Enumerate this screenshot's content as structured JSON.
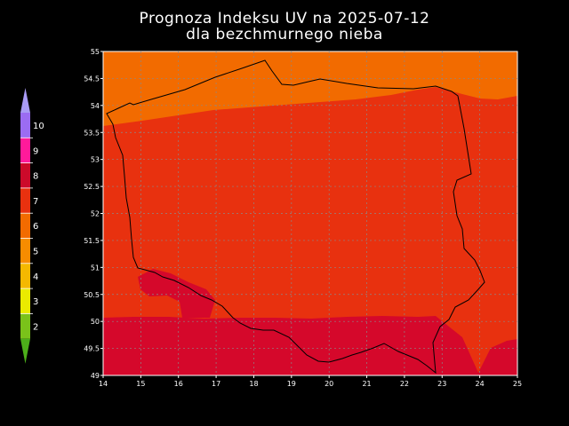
{
  "title": {
    "line1": "Prognoza Indeksu UV na 2025-07-12",
    "line2": "dla bezchmurnego nieba"
  },
  "map": {
    "x_ticks": [
      "14",
      "15",
      "16",
      "17",
      "18",
      "19",
      "20",
      "21",
      "22",
      "23",
      "24",
      "25"
    ],
    "y_ticks": [
      "55",
      "54.5",
      "54",
      "53.5",
      "53",
      "52.5",
      "52",
      "51.5",
      "51",
      "50.5",
      "50",
      "49.5",
      "49"
    ],
    "x_range": [
      14,
      25
    ],
    "y_range": [
      49,
      55
    ],
    "grid": true,
    "zones": [
      {
        "uv_index": 6,
        "color": "#f26b00",
        "region": "north coast band (~54–55°N)"
      },
      {
        "uv_index": 7,
        "color": "#e8310f",
        "region": "central Poland (~50–54°N)"
      },
      {
        "uv_index": 8,
        "color": "#d5082b",
        "region": "southern band (~49–50°N) and Lower Silesia"
      }
    ]
  },
  "legend": {
    "items": [
      {
        "label": "10",
        "color": "#9b6cf2"
      },
      {
        "label": "9",
        "color": "#ff1a9a"
      },
      {
        "label": "8",
        "color": "#cc0a2a"
      },
      {
        "label": "7",
        "color": "#e8310f"
      },
      {
        "label": "6",
        "color": "#f26b00"
      },
      {
        "label": "5",
        "color": "#f78c00"
      },
      {
        "label": "4",
        "color": "#f5b800"
      },
      {
        "label": "3",
        "color": "#eaea00"
      },
      {
        "label": "2",
        "color": "#7ac21a"
      }
    ],
    "top_arrow_color": "#a99bf5",
    "bottom_arrow_color": "#4caf1a"
  }
}
